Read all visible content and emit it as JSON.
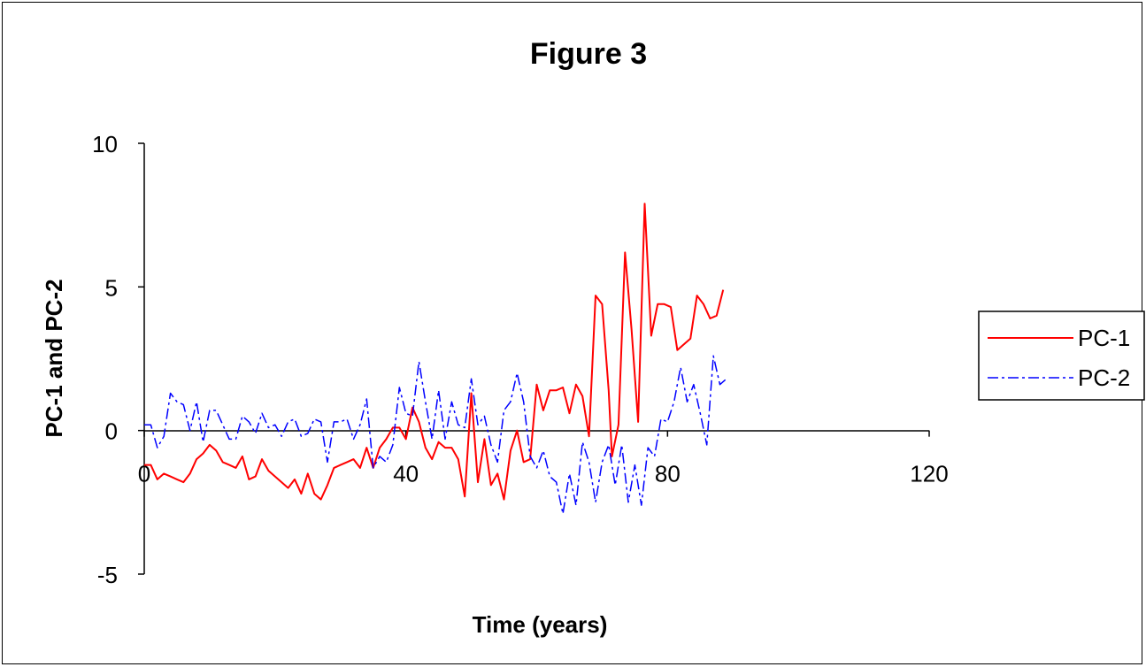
{
  "chart_data": {
    "type": "line",
    "title": "Figure 3",
    "xlabel": "Time (years)",
    "ylabel": "PC-1 and PC-2",
    "xlim": [
      0,
      120
    ],
    "ylim": [
      -5,
      10
    ],
    "x_ticks": [
      "0",
      "40",
      "80",
      "120"
    ],
    "y_ticks": [
      "10",
      "5",
      "0",
      "-5"
    ],
    "grid": false,
    "legend_position": "right",
    "series": [
      {
        "name": "PC-1",
        "color": "#ff0000",
        "dash": "solid",
        "points": [
          [
            0.0,
            -1.2
          ],
          [
            1.0,
            -1.2
          ],
          [
            2.0,
            -1.7
          ],
          [
            3.0,
            -1.5
          ],
          [
            4.0,
            -1.6
          ],
          [
            5.0,
            -1.7
          ],
          [
            6.0,
            -1.8
          ],
          [
            7.0,
            -1.5
          ],
          [
            8.0,
            -1.0
          ],
          [
            9.0,
            -0.8
          ],
          [
            10.0,
            -0.5
          ],
          [
            11.0,
            -0.7
          ],
          [
            12.0,
            -1.1
          ],
          [
            13.0,
            -1.2
          ],
          [
            14.0,
            -1.3
          ],
          [
            15.0,
            -0.9
          ],
          [
            16.0,
            -1.7
          ],
          [
            17.0,
            -1.6
          ],
          [
            18.0,
            -1.0
          ],
          [
            19.0,
            -1.4
          ],
          [
            20.0,
            -1.6
          ],
          [
            21.0,
            -1.8
          ],
          [
            22.0,
            -2.0
          ],
          [
            23.0,
            -1.7
          ],
          [
            24.0,
            -2.2
          ],
          [
            25.0,
            -1.5
          ],
          [
            26.0,
            -2.2
          ],
          [
            27.0,
            -2.4
          ],
          [
            28.0,
            -1.9
          ],
          [
            29.0,
            -1.3
          ],
          [
            30.0,
            -1.2
          ],
          [
            31.0,
            -1.1
          ],
          [
            32.0,
            -1.0
          ],
          [
            33.0,
            -1.3
          ],
          [
            34.0,
            -0.6
          ],
          [
            35.0,
            -1.3
          ],
          [
            36.0,
            -0.6
          ],
          [
            37.0,
            -0.3
          ],
          [
            38.0,
            0.1
          ],
          [
            39.0,
            0.1
          ],
          [
            40.0,
            -0.3
          ],
          [
            41.0,
            0.8
          ],
          [
            42.0,
            0.3
          ],
          [
            43.0,
            -0.6
          ],
          [
            44.0,
            -1.0
          ],
          [
            45.0,
            -0.4
          ],
          [
            46.0,
            -0.6
          ],
          [
            47.0,
            -0.6
          ],
          [
            48.0,
            -1.0
          ],
          [
            49.0,
            -2.3
          ],
          [
            50.0,
            1.3
          ],
          [
            51.0,
            -1.8
          ],
          [
            52.0,
            -0.3
          ],
          [
            53.0,
            -1.9
          ],
          [
            54.0,
            -1.5
          ],
          [
            55.0,
            -2.4
          ],
          [
            56.0,
            -0.7
          ],
          [
            57.0,
            0.0
          ],
          [
            58.0,
            -1.1
          ],
          [
            59.0,
            -1.0
          ],
          [
            60.0,
            1.6
          ],
          [
            61.0,
            0.7
          ],
          [
            62.0,
            1.4
          ],
          [
            63.0,
            1.4
          ],
          [
            64.0,
            1.5
          ],
          [
            65.0,
            0.6
          ],
          [
            66.0,
            1.6
          ],
          [
            67.0,
            1.2
          ],
          [
            68.0,
            -0.2
          ],
          [
            69.0,
            4.7
          ],
          [
            70.0,
            4.4
          ],
          [
            71.0,
            1.4
          ],
          [
            71.5,
            -0.9
          ],
          [
            72.5,
            0.2
          ],
          [
            73.5,
            6.2
          ],
          [
            74.5,
            3.5
          ],
          [
            75.5,
            0.3
          ],
          [
            76.5,
            7.9
          ],
          [
            77.5,
            3.3
          ],
          [
            78.5,
            4.4
          ],
          [
            79.5,
            4.4
          ],
          [
            80.5,
            4.3
          ],
          [
            81.5,
            2.8
          ],
          [
            82.5,
            3.0
          ],
          [
            83.5,
            3.2
          ],
          [
            84.5,
            4.7
          ],
          [
            85.5,
            4.4
          ],
          [
            86.5,
            3.9
          ],
          [
            87.5,
            4.0
          ],
          [
            88.5,
            4.9
          ]
        ]
      },
      {
        "name": "PC-2",
        "color": "#0000ff",
        "dash": "dashdot",
        "points": [
          [
            0.0,
            0.2
          ],
          [
            1.0,
            0.2
          ],
          [
            2.0,
            -0.6
          ],
          [
            3.0,
            -0.2
          ],
          [
            4.0,
            1.3
          ],
          [
            5.0,
            1.0
          ],
          [
            6.0,
            0.9
          ],
          [
            7.0,
            0.0
          ],
          [
            8.0,
            1.0
          ],
          [
            9.0,
            -0.4
          ],
          [
            10.0,
            0.7
          ],
          [
            11.0,
            0.7
          ],
          [
            12.0,
            0.2
          ],
          [
            13.0,
            -0.3
          ],
          [
            14.0,
            -0.3
          ],
          [
            15.0,
            0.5
          ],
          [
            16.0,
            0.3
          ],
          [
            17.0,
            -0.1
          ],
          [
            18.0,
            0.6
          ],
          [
            19.0,
            0.1
          ],
          [
            20.0,
            0.2
          ],
          [
            21.0,
            -0.2
          ],
          [
            22.0,
            0.3
          ],
          [
            23.0,
            0.4
          ],
          [
            24.0,
            -0.2
          ],
          [
            25.0,
            -0.1
          ],
          [
            26.0,
            0.4
          ],
          [
            27.0,
            0.3
          ],
          [
            28.0,
            -1.1
          ],
          [
            29.0,
            0.3
          ],
          [
            30.0,
            0.3
          ],
          [
            31.0,
            0.4
          ],
          [
            32.0,
            -0.3
          ],
          [
            33.0,
            0.2
          ],
          [
            34.0,
            1.1
          ],
          [
            35.0,
            -1.3
          ],
          [
            36.0,
            -0.9
          ],
          [
            37.0,
            -1.1
          ],
          [
            38.0,
            -0.5
          ],
          [
            39.0,
            1.5
          ],
          [
            40.0,
            0.6
          ],
          [
            41.0,
            0.5
          ],
          [
            42.0,
            2.4
          ],
          [
            43.0,
            1.0
          ],
          [
            44.0,
            -0.3
          ],
          [
            45.0,
            1.4
          ],
          [
            46.0,
            -0.3
          ],
          [
            47.0,
            1.0
          ],
          [
            48.0,
            0.2
          ],
          [
            49.0,
            0.1
          ],
          [
            50.0,
            1.8
          ],
          [
            51.0,
            0.2
          ],
          [
            52.0,
            0.5
          ],
          [
            53.0,
            -0.5
          ],
          [
            54.0,
            -1.1
          ],
          [
            55.0,
            0.7
          ],
          [
            56.0,
            1.0
          ],
          [
            57.0,
            2.0
          ],
          [
            58.0,
            1.0
          ],
          [
            59.0,
            -0.9
          ],
          [
            60.0,
            -1.3
          ],
          [
            61.0,
            -0.7
          ],
          [
            62.0,
            -1.6
          ],
          [
            63.0,
            -1.8
          ],
          [
            64.0,
            -2.9
          ],
          [
            65.0,
            -1.5
          ],
          [
            66.0,
            -2.6
          ],
          [
            67.0,
            -0.4
          ],
          [
            68.0,
            -1.1
          ],
          [
            69.0,
            -2.5
          ],
          [
            70.0,
            -1.1
          ],
          [
            71.0,
            -0.5
          ],
          [
            72.0,
            -1.9
          ],
          [
            73.0,
            -0.5
          ],
          [
            74.0,
            -2.5
          ],
          [
            75.0,
            -1.2
          ],
          [
            76.0,
            -2.6
          ],
          [
            77.0,
            -0.6
          ],
          [
            78.0,
            -0.9
          ],
          [
            79.0,
            0.4
          ],
          [
            80.0,
            0.3
          ],
          [
            81.0,
            1.0
          ],
          [
            82.0,
            2.2
          ],
          [
            83.0,
            1.0
          ],
          [
            84.0,
            1.6
          ],
          [
            85.0,
            0.6
          ],
          [
            86.0,
            -0.5
          ],
          [
            87.0,
            2.6
          ],
          [
            88.0,
            1.6
          ],
          [
            89.0,
            1.8
          ]
        ]
      }
    ]
  }
}
